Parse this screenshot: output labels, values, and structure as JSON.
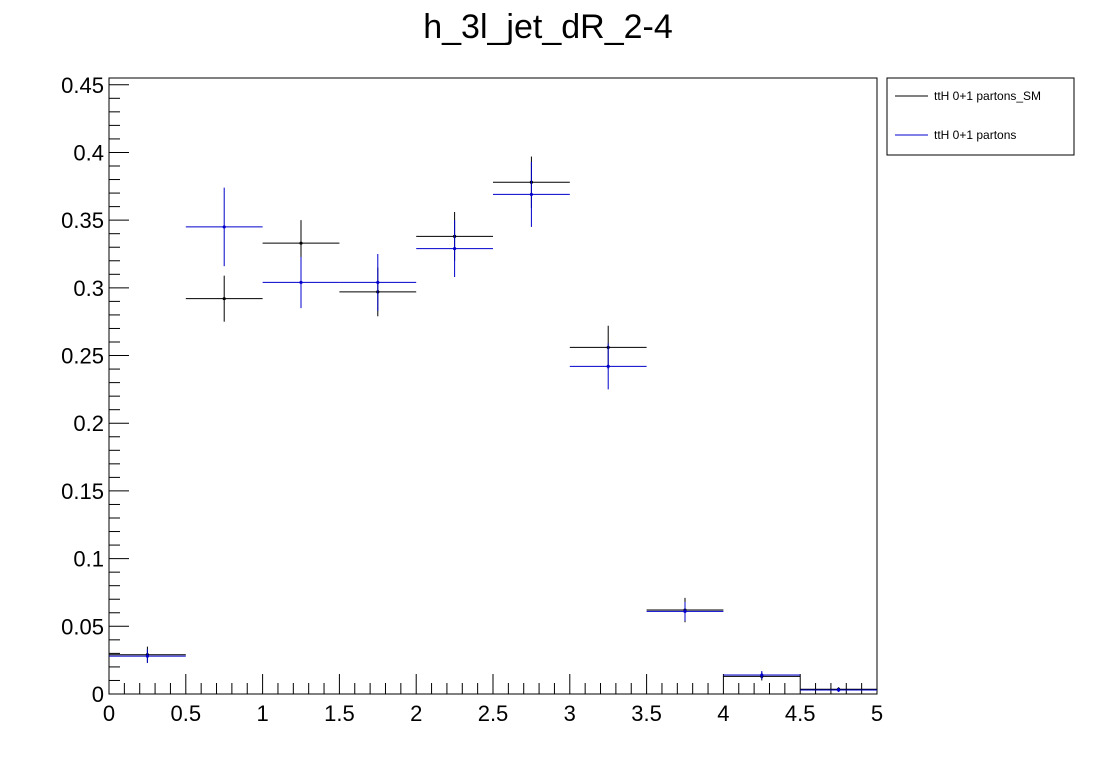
{
  "chart_data": {
    "type": "scatter",
    "title": "h_3l_jet_dR_2-4",
    "xlabel": "",
    "ylabel": "",
    "xlim": [
      0,
      5
    ],
    "ylim": [
      0,
      0.455
    ],
    "x_ticks": [
      "0",
      "0.5",
      "1",
      "1.5",
      "2",
      "2.5",
      "3",
      "3.5",
      "4",
      "4.5",
      "5"
    ],
    "y_ticks": [
      "0",
      "0.05",
      "0.1",
      "0.15",
      "0.2",
      "0.25",
      "0.3",
      "0.35",
      "0.4",
      "0.45"
    ],
    "legend_position": "top-right-outside",
    "series": [
      {
        "name": "ttH 0+1 partons_SM",
        "color": "#000000",
        "x": [
          0.25,
          0.75,
          1.25,
          1.75,
          2.25,
          2.75,
          3.25,
          3.75,
          4.25,
          4.75
        ],
        "xerr": 0.25,
        "y": [
          0.029,
          0.292,
          0.333,
          0.297,
          0.338,
          0.378,
          0.256,
          0.062,
          0.013,
          0.0035
        ],
        "yerr": [
          0.006,
          0.017,
          0.017,
          0.018,
          0.018,
          0.019,
          0.016,
          0.009,
          0.003,
          0.0015
        ]
      },
      {
        "name": "ttH 0+1 partons",
        "color": "#0000cc",
        "x": [
          0.25,
          0.75,
          1.25,
          1.75,
          2.25,
          2.75,
          3.25,
          3.75,
          4.25,
          4.75
        ],
        "xerr": 0.25,
        "y": [
          0.028,
          0.345,
          0.304,
          0.304,
          0.329,
          0.369,
          0.242,
          0.061,
          0.014,
          0.003
        ],
        "yerr": [
          0.005,
          0.029,
          0.019,
          0.021,
          0.021,
          0.024,
          0.017,
          0.007,
          0.003,
          0.0015
        ]
      }
    ]
  }
}
